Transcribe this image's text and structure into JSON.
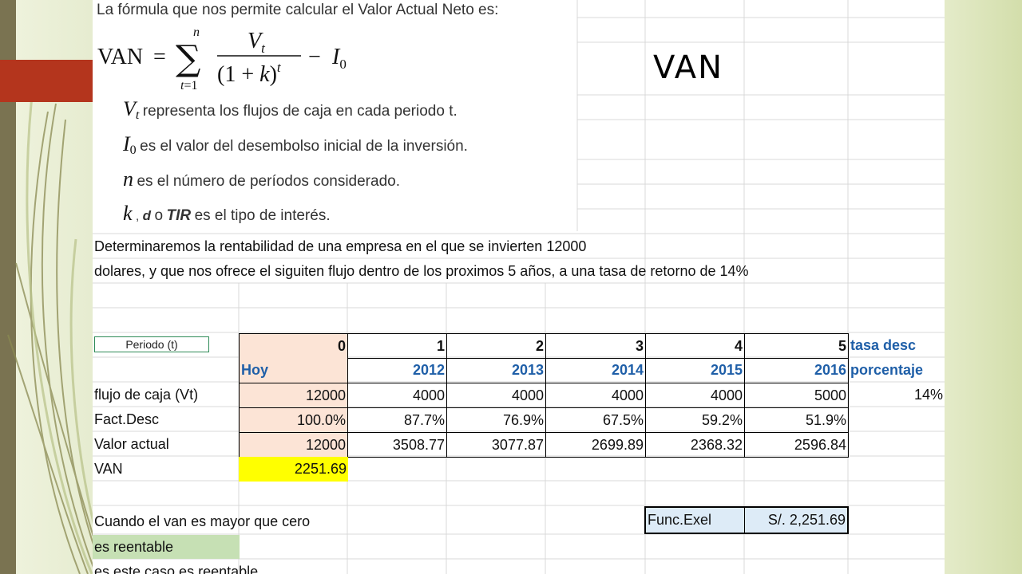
{
  "formula": {
    "intro": "La fórmula que nos permite calcular el Valor Actual Neto es:",
    "lhs": "VAN",
    "definitions": [
      {
        "symbol": "V",
        "sub": "t",
        "text": "representa los flujos de caja en cada periodo t."
      },
      {
        "symbol": "I",
        "sub": "0",
        "text": "es el valor del desembolso inicial de la inversión."
      },
      {
        "symbol": "n",
        "sub": "",
        "text": "es el número de períodos considerado."
      }
    ],
    "rate": {
      "symbol": "k",
      "sep": ",",
      "d": "d",
      "o": "o",
      "tir": "TIR",
      "text": "es el tipo de interés."
    }
  },
  "slide_title": "VAN",
  "description": {
    "line1": "Determinaremos la rentabilidad de una empresa en el que se invierten 12000",
    "line2": "dolares, y que nos ofrece el siguiten flujo dentro de los proximos 5 años, a una tasa de retorno de 14%"
  },
  "table": {
    "period_label": "Periodo (t)",
    "periods": [
      "0",
      "1",
      "2",
      "3",
      "4",
      "5"
    ],
    "tasa_label": "tasa desc",
    "years": [
      "Hoy",
      "2012",
      "2013",
      "2014",
      "2015",
      "2016"
    ],
    "porcentaje_label": "porcentaje",
    "rows": [
      {
        "label": "flujo de caja (Vt)",
        "values": [
          "12000",
          "4000",
          "4000",
          "4000",
          "4000",
          "5000"
        ]
      },
      {
        "label": "Fact.Desc",
        "values": [
          "100.0%",
          "87.7%",
          "76.9%",
          "67.5%",
          "59.2%",
          "51.9%"
        ]
      },
      {
        "label": "Valor actual",
        "values": [
          "12000",
          "3508.77",
          "3077.87",
          "2699.89",
          "2368.32",
          "2596.84"
        ]
      }
    ],
    "rate_value": "14%",
    "van_label": "VAN",
    "van_value": "2251.69"
  },
  "conclusion": {
    "line1": "Cuando el van es mayor que cero",
    "line2": "es reentable",
    "line3": "es este caso es reentable"
  },
  "func": {
    "label": "Func.Exel",
    "value": "S/. 2,251.69"
  },
  "colors": {
    "accent_red": "#b4351d",
    "van_highlight": "#ffff00",
    "rentable_green": "#c6e0b4",
    "header_peach": "#fce4d6",
    "func_blue": "#ddebf7",
    "header_blue_text": "#1f5fa8"
  }
}
